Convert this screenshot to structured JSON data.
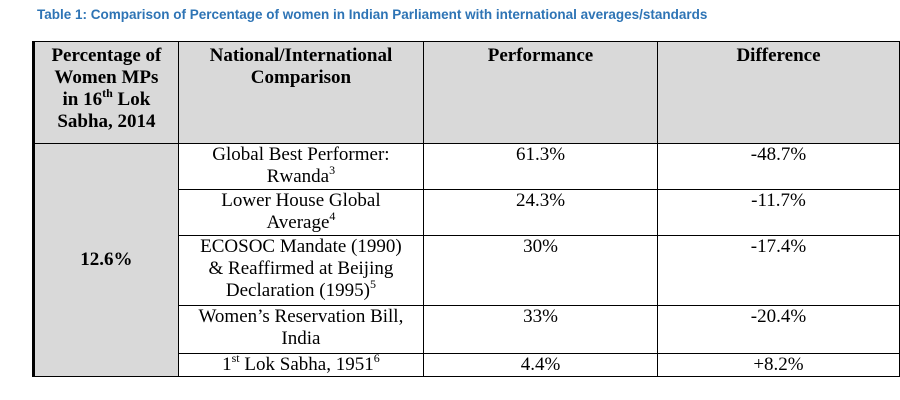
{
  "caption": "Table 1: Comparison of Percentage of women in Indian Parliament with international averages/standards",
  "headers": {
    "col0": {
      "line1": "Percentage of",
      "line2": "Women MPs",
      "line3_pre": "in 16",
      "line3_sup": "th",
      "line3_post": " Lok",
      "line4": "Sabha, 2014"
    },
    "col1": {
      "line1": "National/International",
      "line2": "Comparison"
    },
    "col2": "Performance",
    "col3": "Difference"
  },
  "shared_value": "12.6%",
  "rows": [
    {
      "label_line1": "Global Best Performer:",
      "label_line2": "Rwanda",
      "label_sup": "3",
      "performance": "61.3%",
      "difference": "-48.7%"
    },
    {
      "label_line1": "Lower House Global",
      "label_line2": "Average",
      "label_sup": "4",
      "performance": "24.3%",
      "difference": "-11.7%"
    },
    {
      "label_line1": "ECOSOC Mandate (1990)",
      "label_line2": "& Reaffirmed at Beijing",
      "label_line3": "Declaration (1995)",
      "label_sup": "5",
      "performance": "30%",
      "difference": "-17.4%"
    },
    {
      "label_line1": "Women’s Reservation Bill,",
      "label_line2": "India",
      "performance": "33%",
      "difference": "-20.4%"
    },
    {
      "label_pre": "1",
      "label_pre_sup": "st",
      "label_post": " Lok Sabha, 1951",
      "label_sup": "6",
      "performance": "4.4%",
      "difference": "+8.2%"
    }
  ]
}
